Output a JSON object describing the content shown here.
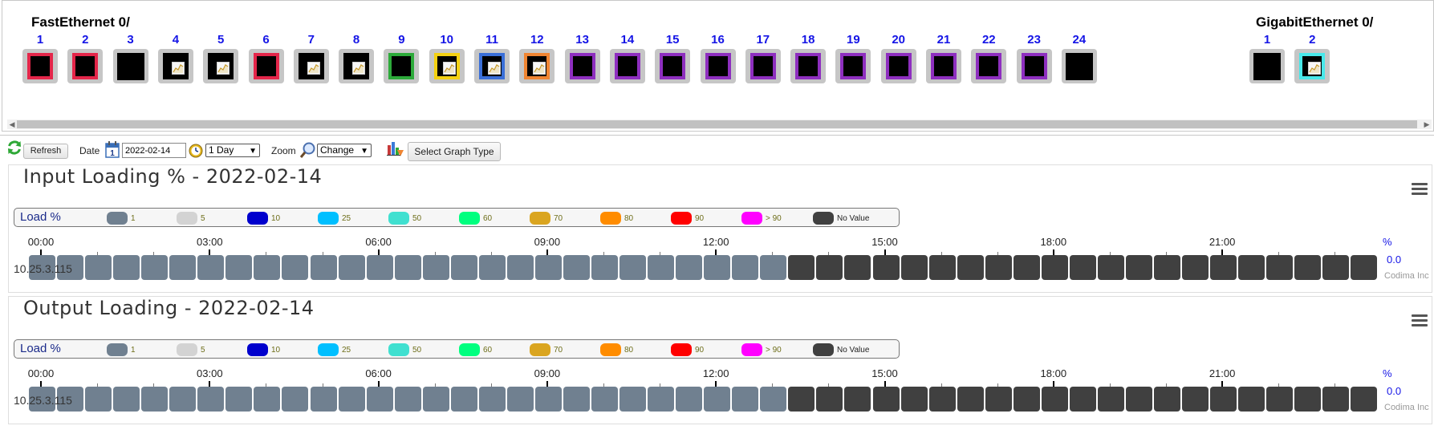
{
  "ports": {
    "fast_title": "FastEthernet 0/",
    "gig_title": "GigabitEthernet 0/",
    "fast": [
      {
        "num": "1",
        "border": "#e4264a",
        "graph": false
      },
      {
        "num": "2",
        "border": "#e4264a",
        "graph": false
      },
      {
        "num": "3",
        "border": "none",
        "graph": false
      },
      {
        "num": "4",
        "border": "#000000",
        "graph": true
      },
      {
        "num": "5",
        "border": "#000000",
        "graph": true
      },
      {
        "num": "6",
        "border": "#e4264a",
        "graph": false
      },
      {
        "num": "7",
        "border": "#000000",
        "graph": true
      },
      {
        "num": "8",
        "border": "#000000",
        "graph": true
      },
      {
        "num": "9",
        "border": "#2daa3a",
        "graph": false
      },
      {
        "num": "10",
        "border": "#f4d112",
        "graph": true
      },
      {
        "num": "11",
        "border": "#3a6fd8",
        "graph": true
      },
      {
        "num": "12",
        "border": "#f08532",
        "graph": true
      },
      {
        "num": "13",
        "border": "#8e2fbf",
        "graph": false
      },
      {
        "num": "14",
        "border": "#8e2fbf",
        "graph": false
      },
      {
        "num": "15",
        "border": "#8e2fbf",
        "graph": false
      },
      {
        "num": "16",
        "border": "#8e2fbf",
        "graph": false
      },
      {
        "num": "17",
        "border": "#8e2fbf",
        "graph": false
      },
      {
        "num": "18",
        "border": "#8e2fbf",
        "graph": false
      },
      {
        "num": "19",
        "border": "#8e2fbf",
        "graph": false
      },
      {
        "num": "20",
        "border": "#8e2fbf",
        "graph": false
      },
      {
        "num": "21",
        "border": "#8e2fbf",
        "graph": false
      },
      {
        "num": "22",
        "border": "#8e2fbf",
        "graph": false
      },
      {
        "num": "23",
        "border": "#8e2fbf",
        "graph": false
      },
      {
        "num": "24",
        "border": "none",
        "graph": false
      }
    ],
    "gig": [
      {
        "num": "1",
        "border": "none",
        "graph": false
      },
      {
        "num": "2",
        "border": "#48e8ea",
        "graph": true
      }
    ]
  },
  "toolbar": {
    "refresh_label": "Refresh",
    "date_label": "Date",
    "date_value": "2022-02-14",
    "period_value": "1 Day",
    "zoom_label": "Zoom",
    "zoom_value": "Change",
    "graph_type_label": "Select Graph Type"
  },
  "legend": {
    "title": "Load %",
    "items": [
      {
        "label": "1",
        "color": "#708090"
      },
      {
        "label": "5",
        "color": "#d3d3d3"
      },
      {
        "label": "10",
        "color": "#0000cd"
      },
      {
        "label": "25",
        "color": "#00bfff"
      },
      {
        "label": "50",
        "color": "#40e0d0"
      },
      {
        "label": "60",
        "color": "#00ff7f"
      },
      {
        "label": "70",
        "color": "#daa520"
      },
      {
        "label": "80",
        "color": "#ff8c00"
      },
      {
        "label": "90",
        "color": "#ff0000"
      },
      {
        "label": "> 90",
        "color": "#ff00ff"
      },
      {
        "label": "No Value",
        "color": "#404040"
      }
    ]
  },
  "timeline": {
    "labels": [
      "00:00",
      "03:00",
      "06:00",
      "09:00",
      "12:00",
      "15:00",
      "18:00",
      "21:00"
    ],
    "cells_total": 48,
    "cells_with_value": 27,
    "value_color": "#708090",
    "novalue_color": "#404040"
  },
  "sections": [
    {
      "title": "Input Loading % - 2022-02-14",
      "host": "10.25.3.115",
      "unit": "%",
      "value": "0.0",
      "credit": "Codima Inc"
    },
    {
      "title": "Output Loading - 2022-02-14",
      "host": "10.25.3.115",
      "unit": "%",
      "value": "0.0",
      "credit": "Codima Inc"
    }
  ]
}
